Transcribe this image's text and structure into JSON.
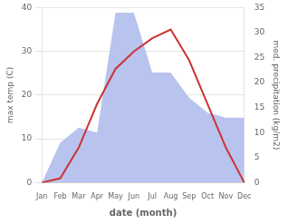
{
  "chart_data": {
    "type": "line",
    "xlabel": "date (month)",
    "ylabel": "max temp (C)",
    "y2label": "med. precipitation (kg/m2)",
    "categories": [
      "Jan",
      "Feb",
      "Mar",
      "Apr",
      "May",
      "Jun",
      "Jul",
      "Aug",
      "Sep",
      "Oct",
      "Nov",
      "Dec"
    ],
    "series": [
      {
        "type": "line",
        "color": "#cc3333",
        "values": [
          0,
          1,
          8,
          18,
          26,
          30,
          33,
          35,
          28,
          18,
          8,
          0
        ]
      },
      {
        "type": "area",
        "color": "#b8c4ee",
        "axis": "y2",
        "values": [
          0,
          8,
          11,
          10,
          34,
          34,
          22,
          22,
          17,
          14,
          13,
          13
        ]
      }
    ],
    "ylim": [
      0,
      40
    ],
    "yticks": [
      0,
      10,
      20,
      30,
      40
    ],
    "y2lim": [
      0,
      35
    ],
    "y2ticks": [
      0,
      5,
      10,
      15,
      20,
      25,
      30,
      35
    ],
    "grid": true
  }
}
